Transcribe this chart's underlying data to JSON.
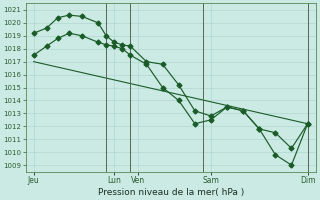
{
  "xlabel": "Pression niveau de la mer( hPa )",
  "bg_color": "#cceae4",
  "grid_color": "#aad4cc",
  "line_color": "#1a5c28",
  "ylim": [
    1008.5,
    1021.5
  ],
  "yticks": [
    1009,
    1010,
    1011,
    1012,
    1013,
    1014,
    1015,
    1016,
    1017,
    1018,
    1019,
    1020,
    1021
  ],
  "xtick_labels": [
    "Jeu",
    "Lun",
    "Ven",
    "Sam",
    "Dim"
  ],
  "xtick_positions": [
    0,
    5,
    6.5,
    11,
    17
  ],
  "vline_x": [
    4.5,
    6,
    10.5,
    17
  ],
  "line1_x": [
    0,
    0.8,
    1.5,
    2.2,
    3,
    4,
    4.5,
    5,
    5.5,
    6,
    7,
    8,
    9,
    10,
    11,
    12,
    13,
    14,
    15,
    16,
    17
  ],
  "line1_y": [
    1019.2,
    1019.6,
    1020.4,
    1020.6,
    1020.5,
    1020.0,
    1019.0,
    1018.5,
    1018.3,
    1018.2,
    1017.0,
    1016.8,
    1015.2,
    1013.2,
    1012.8,
    1013.5,
    1013.2,
    1011.8,
    1011.5,
    1010.3,
    1012.2
  ],
  "line2_x": [
    0,
    0.8,
    1.5,
    2.2,
    3,
    4,
    4.5,
    5,
    5.5,
    6,
    7,
    8,
    9,
    10,
    11,
    12,
    13,
    14,
    15,
    16,
    17
  ],
  "line2_y": [
    1017.5,
    1018.2,
    1018.8,
    1019.2,
    1019.0,
    1018.5,
    1018.3,
    1018.2,
    1018.0,
    1017.5,
    1016.8,
    1015.0,
    1014.0,
    1012.2,
    1012.5,
    1013.5,
    1013.2,
    1011.8,
    1009.8,
    1009.0,
    1012.2
  ],
  "line3_x": [
    0,
    17
  ],
  "line3_y": [
    1017.0,
    1012.2
  ],
  "figsize": [
    3.2,
    2.0
  ],
  "dpi": 100
}
